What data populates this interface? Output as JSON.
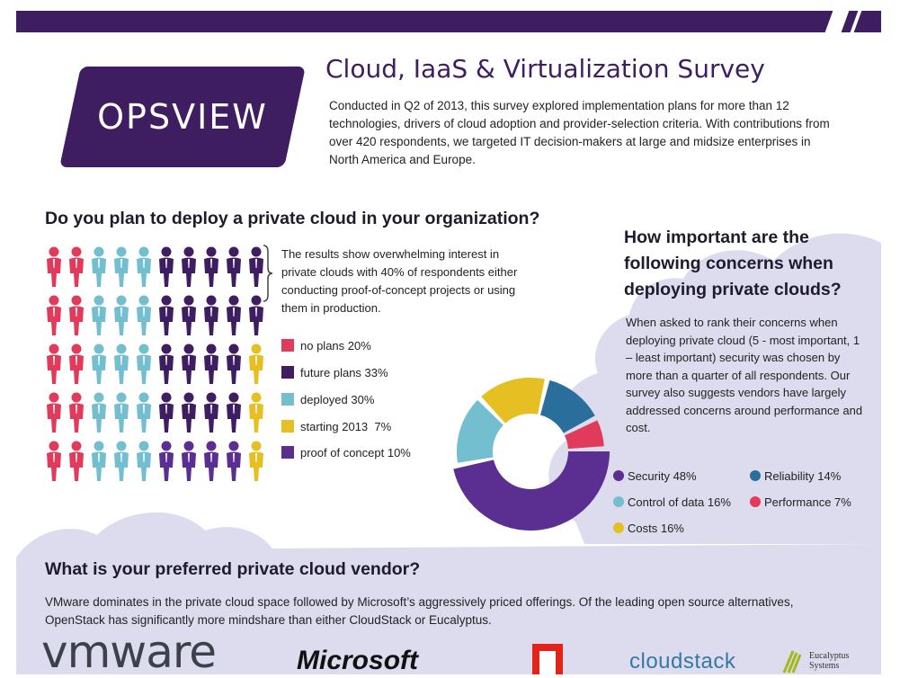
{
  "header": {
    "logo": "OPSVIEW",
    "title": "Cloud, IaaS & Virtualization Survey",
    "intro": "Conducted in Q2 of 2013, this survey explored implementation plans for more than 12 technologies, drivers of cloud adoption and provider-selection criteria. With contributions from over 420 respondents, we targeted IT decision-makers at large and midsize enterprises in North America and Europe."
  },
  "section1": {
    "question": "Do you plan to deploy a private cloud in your organization?",
    "summary": "The results show overwhelming interest in private clouds with 40% of respondents either conducting proof-of-concept projects or using them in production."
  },
  "section2": {
    "question": "How important are the following concerns when deploying private clouds?",
    "summary": "When asked to rank their concerns when deploying private cloud (5 - most important, 1 – least important) security was chosen by more than a quarter of all respondents. Our survey also suggests vendors have largely addressed concerns around performance and cost."
  },
  "section3": {
    "question": "What is your preferred private cloud vendor?",
    "summary": "VMware dominates in the private cloud space followed by Microsoft’s aggressively priced offerings. Of the leading open source alternatives, OpenStack has significantly more mindshare than either CloudStack or Eucalyptus.",
    "vendors": {
      "vmware": "vmware",
      "microsoft": "Microsoft",
      "cloudstack": "cloudstack",
      "eucalyptus_line1": "Eucalyptus",
      "eucalyptus_line2": "Systems"
    }
  },
  "colors": {
    "purple_dark": "#3e1d60",
    "purple": "#5b2e91",
    "red": "#e23a5a",
    "teal": "#74bfcf",
    "yellow": "#e6bf22",
    "blue": "#2a6f9c",
    "cloud": "#dcdcee"
  },
  "chart_data": [
    {
      "type": "pictograph",
      "categories": [
        "no plans",
        "future plans",
        "deployed",
        "starting 2013",
        "proof of concept"
      ],
      "values": [
        20,
        33,
        30,
        7,
        10
      ],
      "unit": "%",
      "legend_labels": [
        "no plans 20%",
        "future plans 33%",
        "deployed 30%",
        "starting 2013  7%",
        "proof of concept 10%"
      ],
      "colors": [
        "#e23a5a",
        "#3e1d60",
        "#74bfcf",
        "#e6bf22",
        "#5b2e91"
      ],
      "grid": [
        [
          "r",
          "r",
          "t",
          "t",
          "t",
          "pd",
          "pd",
          "pd",
          "pd",
          "pd"
        ],
        [
          "r",
          "r",
          "t",
          "t",
          "t",
          "pd",
          "pd",
          "pd",
          "pd",
          "pd"
        ],
        [
          "r",
          "r",
          "t",
          "t",
          "t",
          "pd",
          "pd",
          "pd",
          "pd",
          "y"
        ],
        [
          "r",
          "r",
          "t",
          "t",
          "t",
          "pd",
          "pd",
          "pd",
          "pd",
          "y"
        ],
        [
          "r",
          "r",
          "t",
          "t",
          "t",
          "p",
          "p",
          "p",
          "p",
          "y"
        ]
      ]
    },
    {
      "type": "pie",
      "categories": [
        "Security",
        "Control of data",
        "Costs",
        "Reliability",
        "Performance"
      ],
      "values": [
        48,
        16,
        16,
        14,
        7
      ],
      "unit": "%",
      "legend_labels": [
        "Security 48%",
        "Control of data 16%",
        "Costs 16%",
        "Reliability 14%",
        "Performance 7%"
      ],
      "colors": [
        "#5b2e91",
        "#74bfcf",
        "#e6bf22",
        "#2a6f9c",
        "#e23a5a"
      ]
    }
  ]
}
